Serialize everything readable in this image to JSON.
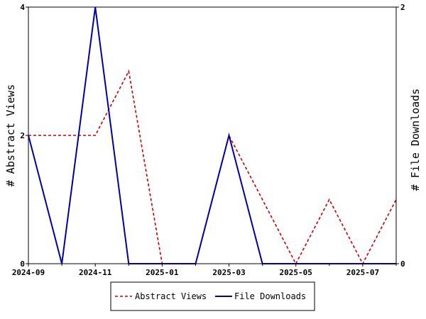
{
  "chart_data": {
    "type": "line",
    "x": [
      "2024-09",
      "2024-10",
      "2024-11",
      "2024-12",
      "2025-01",
      "2025-02",
      "2025-03",
      "2025-04",
      "2025-05",
      "2025-06",
      "2025-07",
      "2025-08"
    ],
    "x_tick_labels": [
      "2024-09",
      "2024-11",
      "2025-01",
      "2025-03",
      "2025-05",
      "2025-07"
    ],
    "series": [
      {
        "name": "Abstract Views",
        "axis": "left",
        "color": "#cc0000",
        "dash": "dashed",
        "values": [
          2,
          2,
          2,
          3,
          0,
          0,
          2,
          1,
          0,
          1,
          0,
          1
        ]
      },
      {
        "name": "File Downloads",
        "axis": "right",
        "color": "#0000aa",
        "dash": "solid",
        "values": [
          1,
          0,
          2,
          0,
          0,
          0,
          1,
          0,
          0,
          0,
          0,
          0
        ]
      }
    ],
    "ylabel_left": "# Abstract Views",
    "ylabel_right": "# File Downloads",
    "ylim_left": [
      0,
      4
    ],
    "yticks_left": [
      0,
      2,
      4
    ],
    "ylim_right": [
      0,
      2
    ],
    "yticks_right": [
      0,
      2
    ],
    "grid": false,
    "legend_position": "bottom"
  }
}
